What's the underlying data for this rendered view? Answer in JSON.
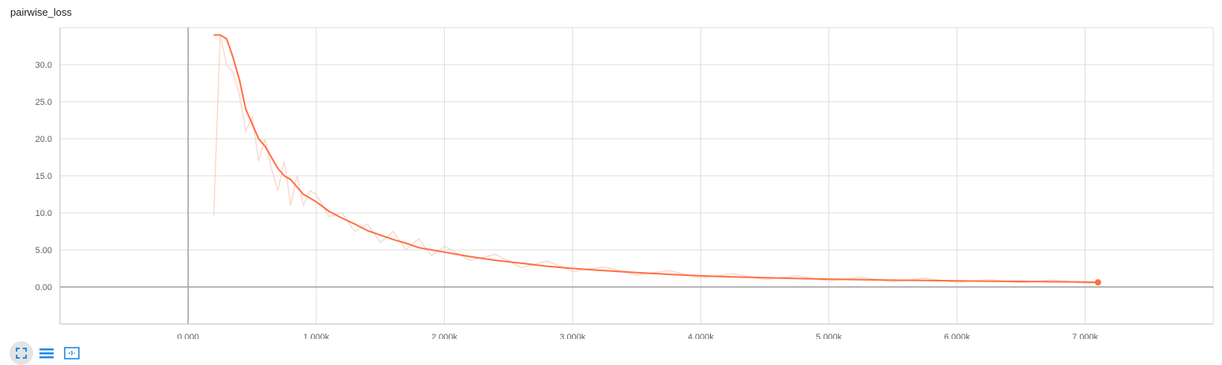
{
  "chart_data": {
    "type": "line",
    "title": "pairwise_loss",
    "xlim": [
      -1000,
      8000
    ],
    "ylim": [
      -5,
      35
    ],
    "x_ticks": [
      0,
      1000,
      2000,
      3000,
      4000,
      5000,
      6000,
      7000
    ],
    "x_tick_labels": [
      "0.000",
      "1.000k",
      "2.000k",
      "3.000k",
      "4.000k",
      "5.000k",
      "6.000k",
      "7.000k"
    ],
    "y_ticks": [
      0,
      5,
      10,
      15,
      20,
      25,
      30
    ],
    "y_tick_labels": [
      "0.00",
      "5.00",
      "10.0",
      "15.0",
      "20.0",
      "25.0",
      "30.0"
    ],
    "grid": true,
    "series": [
      {
        "color": "#ff7043",
        "raw_color": "#fbd9cd",
        "x": [
          200,
          250,
          300,
          350,
          400,
          450,
          500,
          550,
          600,
          650,
          700,
          750,
          800,
          850,
          900,
          950,
          1000,
          1100,
          1200,
          1300,
          1400,
          1500,
          1600,
          1700,
          1800,
          1900,
          2000,
          2200,
          2400,
          2600,
          2800,
          3000,
          3250,
          3500,
          3750,
          4000,
          4250,
          4500,
          4750,
          5000,
          5250,
          5500,
          5750,
          6000,
          6250,
          6500,
          6750,
          7000,
          7100
        ],
        "smoothed": [
          34,
          34,
          33.5,
          31,
          28,
          24,
          22,
          20,
          19,
          17.5,
          16,
          15,
          14.5,
          13.5,
          12.5,
          12,
          11.5,
          10.2,
          9.3,
          8.5,
          7.6,
          7.0,
          6.4,
          5.9,
          5.3,
          5.0,
          4.7,
          4.1,
          3.6,
          3.2,
          2.8,
          2.5,
          2.2,
          1.95,
          1.7,
          1.5,
          1.35,
          1.25,
          1.15,
          1.05,
          0.98,
          0.92,
          0.88,
          0.82,
          0.78,
          0.74,
          0.7,
          0.66,
          0.62
        ],
        "raw": [
          9.5,
          34,
          30,
          29,
          26,
          21,
          23,
          17,
          20,
          16,
          13,
          17,
          11,
          15,
          11,
          13,
          12.5,
          9.5,
          10,
          7.5,
          8.5,
          6.0,
          7.5,
          5.0,
          6.5,
          4.2,
          5.5,
          3.6,
          4.4,
          2.6,
          3.5,
          2.1,
          2.7,
          1.6,
          2.2,
          1.2,
          1.8,
          1.0,
          1.5,
          0.8,
          1.3,
          0.7,
          1.2,
          0.6,
          1.0,
          0.55,
          0.95,
          0.5,
          0.6
        ]
      }
    ]
  },
  "toolbar": {
    "fit_icon": "fit-domain-icon",
    "list_icon": "toggle-log-scale-icon",
    "select_icon": "selection-box-icon"
  }
}
